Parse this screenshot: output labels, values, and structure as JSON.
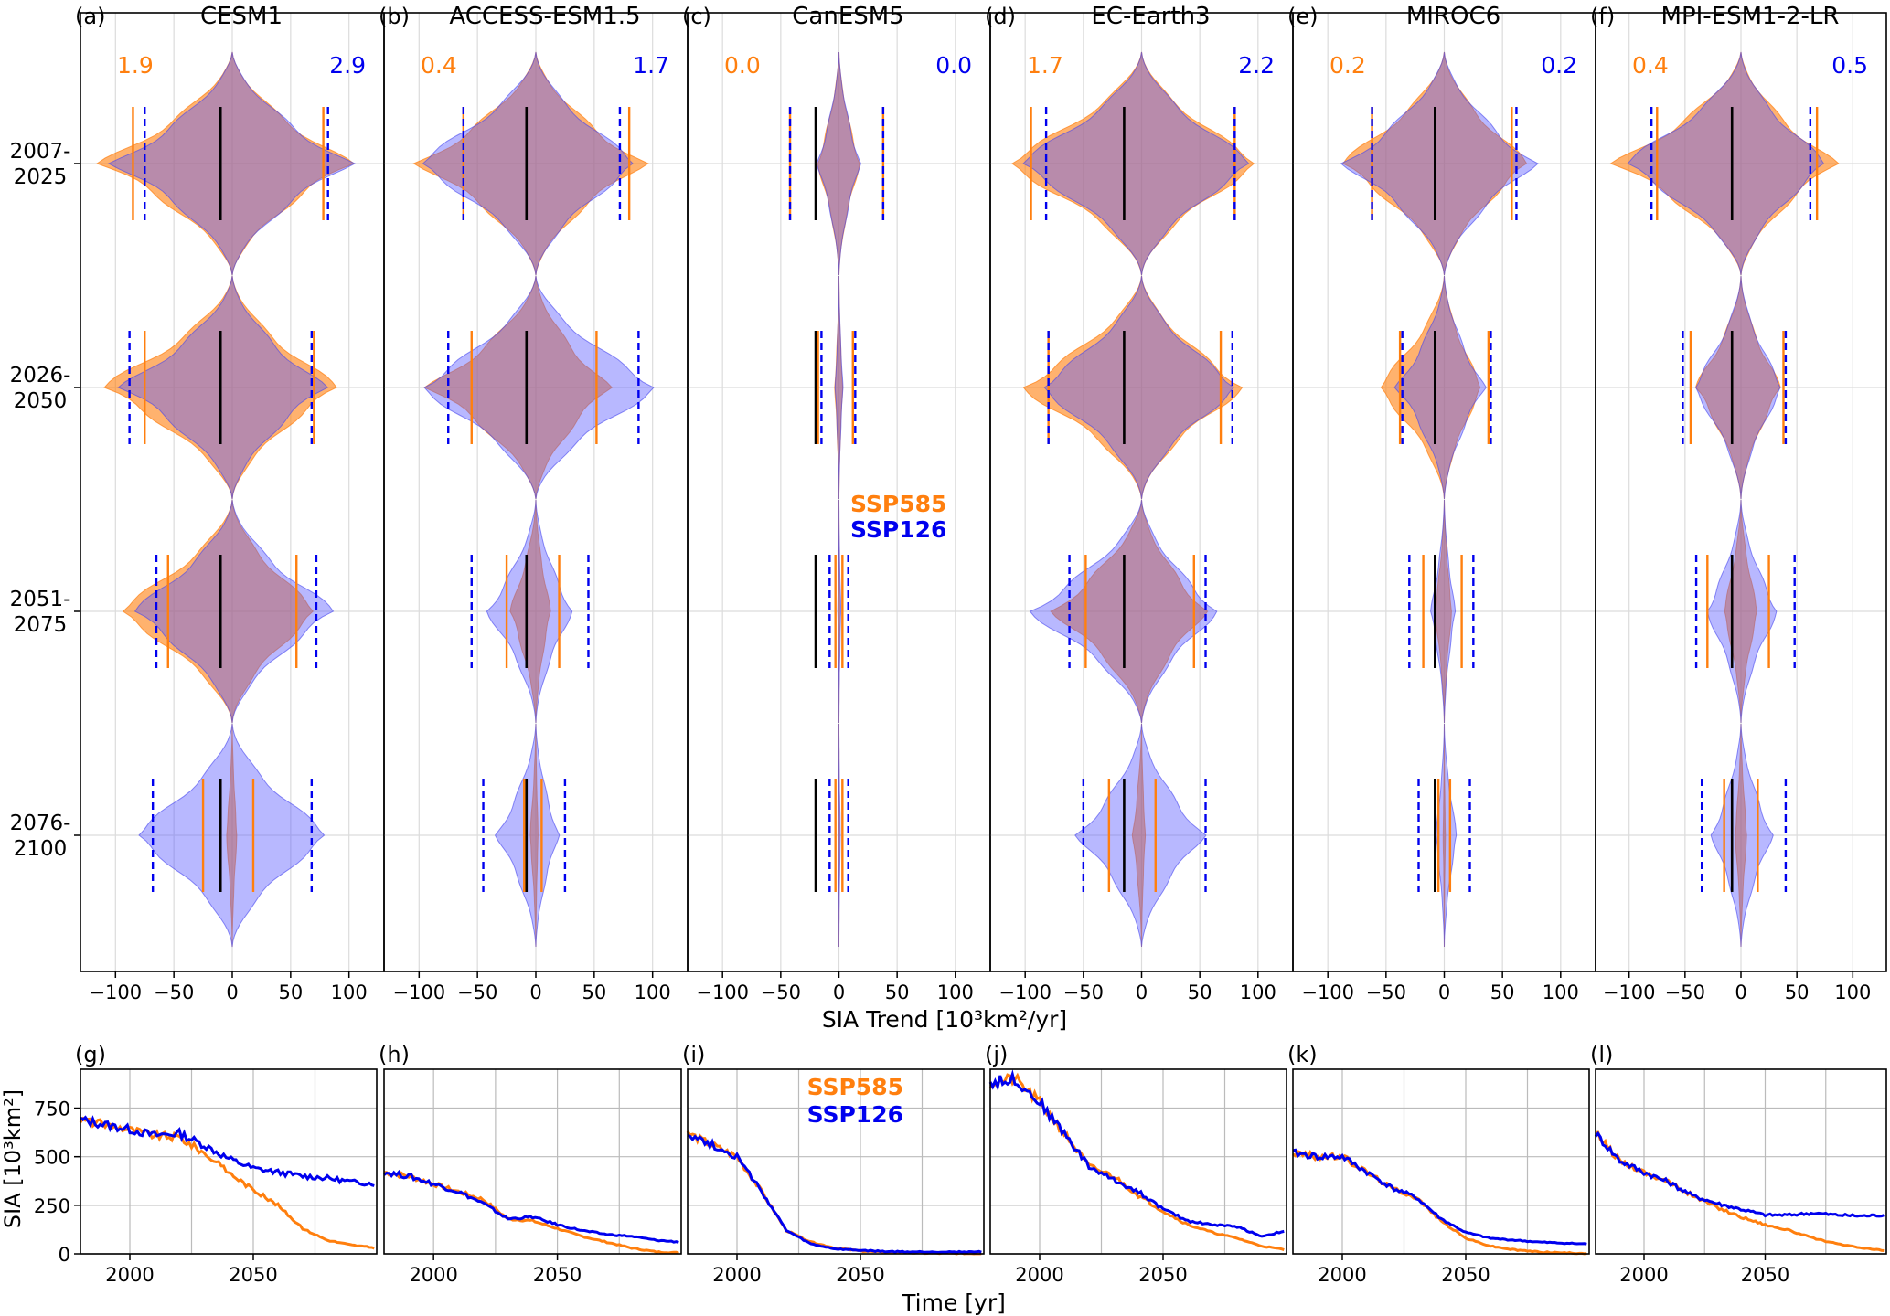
{
  "figure": {
    "top_xlabel": "SIA Trend [10³km²/yr]",
    "bottom_xlabel": "Time [yr]",
    "bottom_ylabel": "SIA [10³km²]",
    "period_labels": [
      [
        "2007-",
        "2025"
      ],
      [
        "2026-",
        "2050"
      ],
      [
        "2051-",
        "2075"
      ],
      [
        "2076-",
        "2100"
      ]
    ],
    "top_xticks": [
      -100,
      -50,
      0,
      50,
      100
    ],
    "bottom_xticks": [
      2000,
      2050
    ],
    "bottom_yticks": [
      0,
      250,
      500,
      750
    ],
    "colors": {
      "ssp585": "#ff7f0e",
      "ssp126": "#0000ee",
      "overlap": "#9c6b8a",
      "median": "#000000"
    }
  },
  "chart_data": [
    {
      "type": "violin",
      "panel": "(a)",
      "title": "CESM1",
      "xlim": [
        -130,
        130
      ],
      "periods": [
        "2007-2025",
        "2026-2050",
        "2051-2075",
        "2076-2100"
      ],
      "ratio_labels": {
        "ssp585": "1.9",
        "ssp126": "2.9"
      },
      "series": [
        {
          "name": "SSP585",
          "median": [
            -10,
            -10,
            -10,
            -10
          ],
          "p5": [
            -85,
            -75,
            -55,
            -25
          ],
          "p95": [
            78,
            70,
            55,
            18
          ],
          "extent": [
            -118,
            -118,
            -105,
            -40
          ],
          "width": [
            0.9,
            0.9,
            0.9,
            0.12
          ]
        },
        {
          "name": "SSP126",
          "median": [
            -10,
            -10,
            -10,
            -10
          ],
          "p5": [
            -75,
            -88,
            -65,
            -68
          ],
          "p95": [
            82,
            68,
            72,
            68
          ],
          "extent": [
            -112,
            -112,
            -95,
            -95
          ],
          "width": [
            0.85,
            0.8,
            0.85,
            0.85
          ]
        }
      ]
    },
    {
      "type": "violin",
      "panel": "(b)",
      "title": "ACCESS-ESM1.5",
      "xlim": [
        -130,
        130
      ],
      "periods": [
        "2007-2025",
        "2026-2050",
        "2051-2075",
        "2076-2100"
      ],
      "ratio_labels": {
        "ssp585": "0.4",
        "ssp126": "1.7"
      },
      "series": [
        {
          "name": "SSP585",
          "median": [
            -8,
            -8,
            -8,
            -8
          ],
          "p5": [
            -62,
            -55,
            -25,
            -10
          ],
          "p95": [
            80,
            52,
            20,
            5
          ],
          "extent": [
            -118,
            -108,
            -60,
            -40
          ],
          "width": [
            0.8,
            0.8,
            0.35,
            0.12
          ]
        },
        {
          "name": "SSP126",
          "median": [
            -8,
            -8,
            -8,
            -8
          ],
          "p5": [
            -62,
            -75,
            -55,
            -45
          ],
          "p95": [
            72,
            88,
            45,
            25
          ],
          "extent": [
            -115,
            -112,
            -88,
            -70
          ],
          "width": [
            0.85,
            0.85,
            0.45,
            0.45
          ]
        }
      ]
    },
    {
      "type": "violin",
      "panel": "(c)",
      "title": "CanESM5",
      "xlim": [
        -130,
        130
      ],
      "periods": [
        "2007-2025",
        "2026-2050",
        "2051-2075",
        "2076-2100"
      ],
      "ratio_labels": {
        "ssp585": "0.0",
        "ssp126": "0.0"
      },
      "series": [
        {
          "name": "SSP585",
          "median": [
            -20,
            -18,
            -2,
            -2
          ],
          "p5": [
            -42,
            -18,
            -3,
            -3
          ],
          "p95": [
            38,
            12,
            3,
            3
          ],
          "extent": [
            -58,
            -28,
            -8,
            -5
          ],
          "width": [
            0.3,
            0.12,
            0.05,
            0.03
          ]
        },
        {
          "name": "SSP126",
          "median": [
            -20,
            -20,
            -20,
            -20
          ],
          "p5": [
            -42,
            -15,
            -8,
            -8
          ],
          "p95": [
            38,
            14,
            8,
            8
          ],
          "extent": [
            -58,
            -25,
            -12,
            -10
          ],
          "width": [
            0.3,
            0.12,
            0.08,
            0.06
          ]
        }
      ]
    },
    {
      "type": "violin",
      "panel": "(d)",
      "title": "EC-Earth3",
      "xlim": [
        -130,
        130
      ],
      "periods": [
        "2007-2025",
        "2026-2050",
        "2051-2075",
        "2076-2100"
      ],
      "ratio_labels": {
        "ssp585": "1.7",
        "ssp126": "2.2"
      },
      "series": [
        {
          "name": "SSP585",
          "median": [
            -15,
            -15,
            -15,
            -15
          ],
          "p5": [
            -95,
            -80,
            -48,
            -28
          ],
          "p95": [
            80,
            68,
            45,
            12
          ],
          "extent": [
            -125,
            -110,
            -90,
            -60
          ],
          "width": [
            0.9,
            0.9,
            0.8,
            0.12
          ]
        },
        {
          "name": "SSP126",
          "median": [
            -15,
            -15,
            -15,
            -15
          ],
          "p5": [
            -82,
            -80,
            -62,
            -50
          ],
          "p95": [
            80,
            78,
            55,
            55
          ],
          "extent": [
            -120,
            -112,
            -115,
            -80
          ],
          "width": [
            0.85,
            0.75,
            0.8,
            0.65
          ]
        }
      ]
    },
    {
      "type": "violin",
      "panel": "(e)",
      "title": "MIROC6",
      "xlim": [
        -130,
        130
      ],
      "periods": [
        "2007-2025",
        "2026-2050",
        "2051-2075",
        "2076-2100"
      ],
      "ratio_labels": {
        "ssp585": "0.2",
        "ssp126": "0.2"
      },
      "series": [
        {
          "name": "SSP585",
          "median": [
            -8,
            -8,
            -8,
            -8
          ],
          "p5": [
            -62,
            -38,
            -18,
            -5
          ],
          "p95": [
            58,
            38,
            15,
            5
          ],
          "extent": [
            -100,
            -100,
            -35,
            -15
          ],
          "width": [
            0.85,
            0.55,
            0.22,
            0.06
          ]
        },
        {
          "name": "SSP126",
          "median": [
            -8,
            -8,
            -8,
            -8
          ],
          "p5": [
            -62,
            -36,
            -30,
            -22
          ],
          "p95": [
            62,
            40,
            25,
            22
          ],
          "extent": [
            -95,
            -70,
            -50,
            -25
          ],
          "width": [
            0.85,
            0.55,
            0.22,
            0.28
          ]
        }
      ]
    },
    {
      "type": "violin",
      "panel": "(f)",
      "title": "MPI-ESM1-2-LR",
      "xlim": [
        -130,
        130
      ],
      "periods": [
        "2007-2025",
        "2026-2050",
        "2051-2075",
        "2076-2100"
      ],
      "ratio_labels": {
        "ssp585": "0.4",
        "ssp126": "0.5"
      },
      "series": [
        {
          "name": "SSP585",
          "median": [
            -8,
            -8,
            -8,
            -8
          ],
          "p5": [
            -75,
            -45,
            -30,
            -15
          ],
          "p95": [
            68,
            38,
            25,
            15
          ],
          "extent": [
            -125,
            -65,
            -42,
            -28
          ],
          "width": [
            0.85,
            0.6,
            0.35,
            0.18
          ]
        },
        {
          "name": "SSP126",
          "median": [
            -8,
            -8,
            -8,
            -8
          ],
          "p5": [
            -80,
            -52,
            -40,
            -35
          ],
          "p95": [
            62,
            40,
            48,
            40
          ],
          "extent": [
            -118,
            -68,
            -65,
            -55
          ],
          "width": [
            0.85,
            0.6,
            0.45,
            0.45
          ]
        }
      ]
    },
    {
      "type": "line",
      "panel": "(g)",
      "xlim": [
        1980,
        2100
      ],
      "ylim": [
        0,
        950
      ],
      "legend": null,
      "series": [
        {
          "name": "SSP585",
          "x": [
            1980,
            1990,
            2000,
            2010,
            2020,
            2030,
            2040,
            2050,
            2060,
            2070,
            2080,
            2090,
            2100
          ],
          "y": [
            690,
            665,
            640,
            610,
            600,
            520,
            420,
            330,
            250,
            130,
            70,
            45,
            30
          ]
        },
        {
          "name": "SSP126",
          "x": [
            1980,
            1990,
            2000,
            2010,
            2020,
            2030,
            2040,
            2050,
            2060,
            2070,
            2080,
            2090,
            2100
          ],
          "y": [
            690,
            665,
            640,
            610,
            620,
            560,
            490,
            440,
            420,
            400,
            390,
            370,
            360
          ]
        }
      ]
    },
    {
      "type": "line",
      "panel": "(h)",
      "xlim": [
        1980,
        2100
      ],
      "ylim": [
        0,
        950
      ],
      "legend": null,
      "series": [
        {
          "name": "SSP585",
          "x": [
            1980,
            1990,
            2000,
            2010,
            2020,
            2030,
            2040,
            2050,
            2060,
            2070,
            2080,
            2090,
            2100
          ],
          "y": [
            420,
            400,
            360,
            320,
            280,
            180,
            170,
            130,
            90,
            60,
            30,
            10,
            5
          ]
        },
        {
          "name": "SSP126",
          "x": [
            1980,
            1990,
            2000,
            2010,
            2020,
            2030,
            2040,
            2050,
            2060,
            2070,
            2080,
            2090,
            2100
          ],
          "y": [
            420,
            400,
            360,
            320,
            260,
            180,
            190,
            150,
            120,
            100,
            90,
            70,
            60
          ]
        }
      ]
    },
    {
      "type": "line",
      "panel": "(i)",
      "xlim": [
        1980,
        2100
      ],
      "ylim": [
        0,
        950
      ],
      "legend": {
        "ssp585": "SSP585",
        "ssp126": "SSP126"
      },
      "series": [
        {
          "name": "SSP585",
          "x": [
            1980,
            1990,
            2000,
            2010,
            2020,
            2030,
            2040,
            2050,
            2060,
            2070,
            2080,
            2090,
            2100
          ],
          "y": [
            620,
            560,
            500,
            320,
            120,
            60,
            30,
            15,
            8,
            5,
            3,
            2,
            2
          ]
        },
        {
          "name": "SSP126",
          "x": [
            1980,
            1990,
            2000,
            2010,
            2020,
            2030,
            2040,
            2050,
            2060,
            2070,
            2080,
            2090,
            2100
          ],
          "y": [
            620,
            560,
            500,
            320,
            120,
            50,
            25,
            18,
            12,
            10,
            10,
            10,
            10
          ]
        }
      ]
    },
    {
      "type": "line",
      "panel": "(j)",
      "xlim": [
        1980,
        2100
      ],
      "ylim": [
        0,
        950
      ],
      "legend": null,
      "series": [
        {
          "name": "SSP585",
          "x": [
            1980,
            1990,
            2000,
            2010,
            2020,
            2030,
            2040,
            2050,
            2060,
            2070,
            2080,
            2090,
            2100
          ],
          "y": [
            880,
            900,
            780,
            620,
            450,
            400,
            300,
            220,
            150,
            110,
            80,
            40,
            20
          ]
        },
        {
          "name": "SSP126",
          "x": [
            1980,
            1990,
            2000,
            2010,
            2020,
            2030,
            2040,
            2050,
            2060,
            2070,
            2080,
            2090,
            2100
          ],
          "y": [
            880,
            900,
            780,
            620,
            450,
            380,
            320,
            230,
            170,
            150,
            140,
            90,
            120
          ]
        }
      ]
    },
    {
      "type": "line",
      "panel": "(k)",
      "xlim": [
        1980,
        2100
      ],
      "ylim": [
        0,
        950
      ],
      "legend": null,
      "series": [
        {
          "name": "SSP585",
          "x": [
            1980,
            1990,
            2000,
            2010,
            2020,
            2030,
            2040,
            2050,
            2060,
            2070,
            2080,
            2090,
            2100
          ],
          "y": [
            520,
            500,
            500,
            420,
            340,
            290,
            170,
            80,
            40,
            20,
            10,
            5,
            3
          ]
        },
        {
          "name": "SSP126",
          "x": [
            1980,
            1990,
            2000,
            2010,
            2020,
            2030,
            2040,
            2050,
            2060,
            2070,
            2080,
            2090,
            2100
          ],
          "y": [
            520,
            500,
            500,
            420,
            340,
            290,
            180,
            110,
            80,
            70,
            60,
            55,
            50
          ]
        }
      ]
    },
    {
      "type": "line",
      "panel": "(l)",
      "xlim": [
        1980,
        2100
      ],
      "ylim": [
        0,
        950
      ],
      "legend": null,
      "series": [
        {
          "name": "SSP585",
          "x": [
            1980,
            1990,
            2000,
            2010,
            2020,
            2030,
            2040,
            2050,
            2060,
            2070,
            2080,
            2090,
            2100
          ],
          "y": [
            620,
            480,
            420,
            370,
            300,
            240,
            190,
            150,
            120,
            80,
            50,
            30,
            15
          ]
        },
        {
          "name": "SSP126",
          "x": [
            1980,
            1990,
            2000,
            2010,
            2020,
            2030,
            2040,
            2050,
            2060,
            2070,
            2080,
            2090,
            2100
          ],
          "y": [
            620,
            480,
            420,
            370,
            300,
            260,
            230,
            200,
            200,
            210,
            200,
            195,
            200
          ]
        }
      ]
    }
  ]
}
